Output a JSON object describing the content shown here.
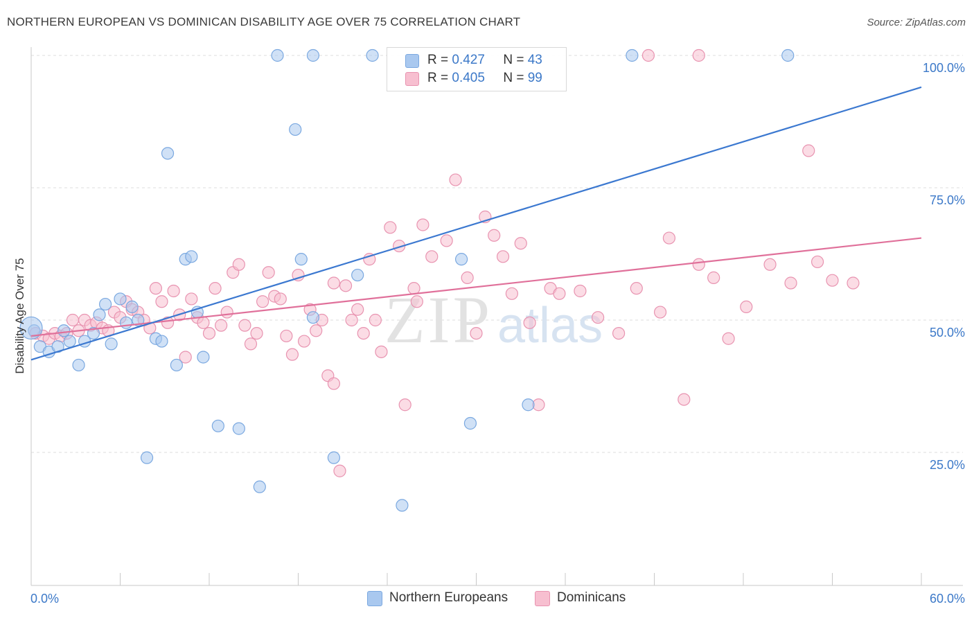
{
  "title": "NORTHERN EUROPEAN VS DOMINICAN DISABILITY AGE OVER 75 CORRELATION CHART",
  "source": "Source: ZipAtlas.com",
  "watermark": {
    "zip": "ZIP",
    "atlas": "atlas"
  },
  "legend": {
    "r_label": "R =",
    "n_label": "N =",
    "rows": [
      {
        "r": "0.427",
        "n": "43"
      },
      {
        "r": "0.405",
        "n": "99"
      }
    ]
  },
  "colors": {
    "blue_fill": "#a9c8ef",
    "blue_stroke": "#7aa8e0",
    "blue_line": "#3b78d0",
    "pink_fill": "#f7bfd0",
    "pink_stroke": "#e893b0",
    "pink_line": "#e0709a",
    "axis_text": "#3b78c8"
  },
  "chart_data": {
    "type": "scatter",
    "title": "NORTHERN EUROPEAN VS DOMINICAN DISABILITY AGE OVER 75 CORRELATION CHART",
    "xlabel": "",
    "ylabel": "Disability Age Over 75",
    "xlim": [
      0,
      60
    ],
    "ylim": [
      0,
      100
    ],
    "x_tick_labels": [
      "0.0%",
      "60.0%"
    ],
    "y_ticks": [
      25,
      50,
      75,
      100
    ],
    "y_tick_labels": [
      "25.0%",
      "50.0%",
      "75.0%",
      "100.0%"
    ],
    "grid": true,
    "legend_position": "top-center",
    "series": [
      {
        "name": "Northern Europeans",
        "r": 0.427,
        "n": 43,
        "trend": {
          "x": [
            0,
            60
          ],
          "y": [
            42.5,
            94.0
          ]
        },
        "points": [
          [
            0.2,
            48.0
          ],
          [
            0.6,
            45.0
          ],
          [
            1.2,
            44.0
          ],
          [
            1.8,
            45.0
          ],
          [
            2.2,
            48.0
          ],
          [
            2.6,
            46.0
          ],
          [
            3.2,
            41.5
          ],
          [
            3.6,
            46.0
          ],
          [
            4.2,
            47.5
          ],
          [
            4.6,
            51.0
          ],
          [
            5.0,
            53.0
          ],
          [
            5.4,
            45.5
          ],
          [
            6.0,
            54.0
          ],
          [
            6.4,
            49.5
          ],
          [
            6.8,
            52.5
          ],
          [
            7.2,
            50.0
          ],
          [
            7.8,
            24.0
          ],
          [
            8.4,
            46.5
          ],
          [
            8.8,
            46.0
          ],
          [
            9.2,
            81.5
          ],
          [
            9.8,
            41.5
          ],
          [
            10.4,
            61.5
          ],
          [
            10.8,
            62.0
          ],
          [
            11.2,
            51.5
          ],
          [
            11.6,
            43.0
          ],
          [
            12.6,
            30.0
          ],
          [
            14.0,
            29.5
          ],
          [
            15.4,
            18.5
          ],
          [
            16.6,
            100
          ],
          [
            17.8,
            86.0
          ],
          [
            18.2,
            61.5
          ],
          [
            19.0,
            100
          ],
          [
            19.0,
            50.5
          ],
          [
            20.4,
            24.0
          ],
          [
            22.0,
            58.5
          ],
          [
            23.0,
            100
          ],
          [
            25.0,
            15.0
          ],
          [
            29.0,
            61.5
          ],
          [
            29.6,
            30.5
          ],
          [
            33.5,
            34.0
          ],
          [
            40.5,
            100
          ],
          [
            51.0,
            100
          ],
          [
            0.0,
            48.5
          ]
        ]
      },
      {
        "name": "Dominicans",
        "r": 0.405,
        "n": 99,
        "trend": {
          "x": [
            0,
            60
          ],
          "y": [
            47.0,
            65.5
          ]
        },
        "points": [
          [
            0.3,
            47.5
          ],
          [
            0.8,
            47.0
          ],
          [
            1.2,
            46.5
          ],
          [
            1.6,
            47.5
          ],
          [
            2.0,
            47.0
          ],
          [
            2.4,
            47.5
          ],
          [
            2.8,
            50.0
          ],
          [
            3.2,
            48.0
          ],
          [
            3.6,
            50.0
          ],
          [
            4.0,
            49.0
          ],
          [
            4.4,
            49.5
          ],
          [
            4.8,
            48.5
          ],
          [
            5.2,
            48.0
          ],
          [
            5.6,
            51.5
          ],
          [
            6.0,
            50.5
          ],
          [
            6.4,
            53.5
          ],
          [
            6.8,
            52.0
          ],
          [
            7.2,
            51.5
          ],
          [
            7.6,
            50.0
          ],
          [
            8.0,
            48.5
          ],
          [
            8.4,
            56.0
          ],
          [
            8.8,
            53.5
          ],
          [
            9.2,
            49.5
          ],
          [
            9.6,
            55.5
          ],
          [
            10.0,
            51.0
          ],
          [
            10.4,
            43.0
          ],
          [
            10.8,
            54.0
          ],
          [
            11.2,
            50.5
          ],
          [
            11.6,
            49.5
          ],
          [
            12.0,
            47.5
          ],
          [
            12.4,
            56.0
          ],
          [
            12.8,
            49.0
          ],
          [
            13.2,
            51.5
          ],
          [
            13.6,
            59.0
          ],
          [
            14.0,
            60.5
          ],
          [
            14.4,
            49.0
          ],
          [
            14.8,
            45.5
          ],
          [
            15.2,
            47.5
          ],
          [
            15.6,
            53.5
          ],
          [
            16.0,
            59.0
          ],
          [
            16.4,
            54.5
          ],
          [
            16.8,
            54.0
          ],
          [
            17.2,
            47.0
          ],
          [
            17.6,
            43.5
          ],
          [
            18.0,
            58.5
          ],
          [
            18.4,
            46.0
          ],
          [
            18.8,
            52.0
          ],
          [
            19.2,
            48.0
          ],
          [
            19.6,
            50.0
          ],
          [
            20.0,
            39.5
          ],
          [
            20.4,
            57.0
          ],
          [
            20.8,
            21.5
          ],
          [
            21.2,
            56.5
          ],
          [
            21.6,
            50.0
          ],
          [
            22.0,
            52.0
          ],
          [
            22.4,
            47.5
          ],
          [
            22.8,
            61.5
          ],
          [
            23.2,
            50.0
          ],
          [
            23.6,
            44.0
          ],
          [
            24.2,
            67.5
          ],
          [
            24.8,
            64.0
          ],
          [
            25.2,
            34.0
          ],
          [
            25.8,
            56.0
          ],
          [
            26.4,
            68.0
          ],
          [
            27.0,
            62.0
          ],
          [
            28.0,
            65.0
          ],
          [
            28.6,
            76.5
          ],
          [
            29.4,
            58.0
          ],
          [
            30.0,
            47.5
          ],
          [
            30.6,
            69.5
          ],
          [
            31.2,
            66.0
          ],
          [
            31.8,
            62.0
          ],
          [
            32.4,
            55.0
          ],
          [
            33.0,
            64.5
          ],
          [
            33.6,
            49.5
          ],
          [
            34.2,
            34.0
          ],
          [
            35.0,
            56.0
          ],
          [
            35.6,
            55.0
          ],
          [
            37.0,
            55.5
          ],
          [
            38.2,
            50.5
          ],
          [
            39.6,
            47.5
          ],
          [
            40.8,
            56.0
          ],
          [
            41.6,
            100
          ],
          [
            42.4,
            51.5
          ],
          [
            43.0,
            65.5
          ],
          [
            44.0,
            35.0
          ],
          [
            45.0,
            100
          ],
          [
            45.0,
            60.5
          ],
          [
            46.0,
            58.0
          ],
          [
            47.0,
            46.5
          ],
          [
            48.2,
            52.5
          ],
          [
            49.8,
            60.5
          ],
          [
            51.2,
            57.0
          ],
          [
            52.4,
            82.0
          ],
          [
            53.0,
            61.0
          ],
          [
            54.0,
            57.5
          ],
          [
            55.4,
            57.0
          ],
          [
            20.4,
            38.0
          ],
          [
            26.0,
            53.5
          ]
        ]
      }
    ]
  }
}
